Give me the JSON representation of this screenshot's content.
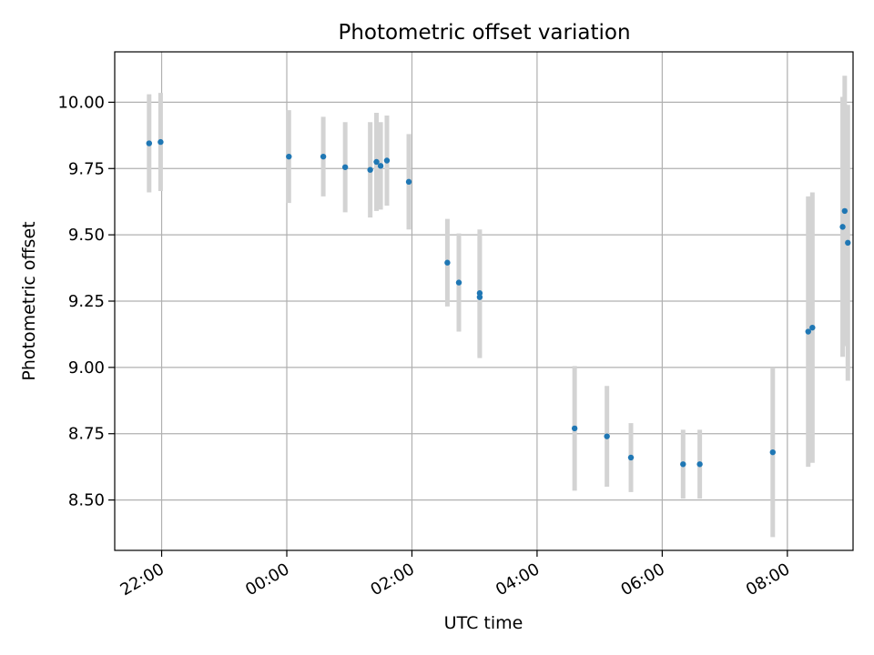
{
  "chart_data": {
    "type": "scatter",
    "title": "Photometric offset variation",
    "xlabel": "UTC time",
    "ylabel": "Photometric offset",
    "x_ticks": [
      "22:00",
      "00:00",
      "02:00",
      "04:00",
      "06:00",
      "08:00"
    ],
    "y_ticks": [
      "8.50",
      "8.75",
      "9.00",
      "9.25",
      "9.50",
      "9.75",
      "10.00"
    ],
    "x_tick_values_hours": [
      22,
      24,
      26,
      28,
      30,
      32
    ],
    "xlim_hours": [
      21.25,
      33.05
    ],
    "ylim": [
      8.31,
      10.19
    ],
    "grid": true,
    "colors": {
      "marker": "#1f77b4",
      "errorbar": "#d3d3d3",
      "grid": "#b0b0b0",
      "axis": "#000000"
    },
    "points": [
      {
        "t": "21:48",
        "y": 9.845,
        "err": 0.185
      },
      {
        "t": "21:59",
        "y": 9.85,
        "err": 0.185
      },
      {
        "t": "00:02",
        "y": 9.795,
        "err": 0.175
      },
      {
        "t": "00:35",
        "y": 9.795,
        "err": 0.15
      },
      {
        "t": "00:56",
        "y": 9.755,
        "err": 0.17
      },
      {
        "t": "01:20",
        "y": 9.745,
        "err": 0.18
      },
      {
        "t": "01:26",
        "y": 9.775,
        "err": 0.185
      },
      {
        "t": "01:30",
        "y": 9.76,
        "err": 0.165
      },
      {
        "t": "01:36",
        "y": 9.78,
        "err": 0.17
      },
      {
        "t": "01:57",
        "y": 9.7,
        "err": 0.18
      },
      {
        "t": "02:34",
        "y": 9.395,
        "err": 0.165
      },
      {
        "t": "02:45",
        "y": 9.32,
        "err": 0.185
      },
      {
        "t": "03:05",
        "y": 9.28,
        "err": 0.24
      },
      {
        "t": "03:05",
        "y": 9.265,
        "err": 0.23
      },
      {
        "t": "04:36",
        "y": 8.77,
        "err": 0.235
      },
      {
        "t": "05:07",
        "y": 8.74,
        "err": 0.19
      },
      {
        "t": "05:30",
        "y": 8.66,
        "err": 0.13
      },
      {
        "t": "06:20",
        "y": 8.635,
        "err": 0.13
      },
      {
        "t": "06:36",
        "y": 8.635,
        "err": 0.13
      },
      {
        "t": "07:46",
        "y": 8.68,
        "err": 0.32
      },
      {
        "t": "08:20",
        "y": 9.135,
        "err": 0.51
      },
      {
        "t": "08:24",
        "y": 9.15,
        "err": 0.51
      },
      {
        "t": "08:53",
        "y": 9.53,
        "err": 0.49
      },
      {
        "t": "08:55",
        "y": 9.59,
        "err": 0.51
      },
      {
        "t": "08:58",
        "y": 9.47,
        "err": 0.52
      }
    ]
  }
}
